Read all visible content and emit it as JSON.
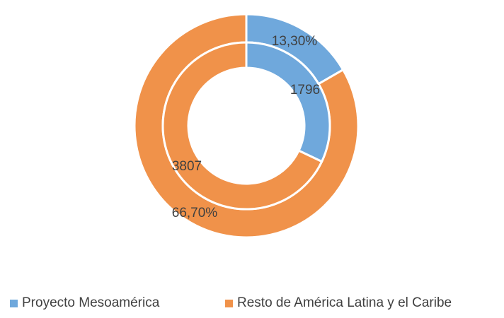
{
  "chart_data": {
    "type": "donut",
    "rings": [
      {
        "name": "outer",
        "values": [
          13.3,
          66.7
        ],
        "labels": [
          "13,30%",
          "66,70%"
        ]
      },
      {
        "name": "inner",
        "values": [
          1796,
          3807
        ],
        "labels": [
          "1796",
          "3807"
        ]
      }
    ],
    "categories": [
      "Proyecto Mesoamérica",
      "Resto de América Latina y el Caribe"
    ],
    "colors": [
      "#6fa8dc",
      "#f0924a"
    ],
    "legend_position": "bottom",
    "title": ""
  }
}
